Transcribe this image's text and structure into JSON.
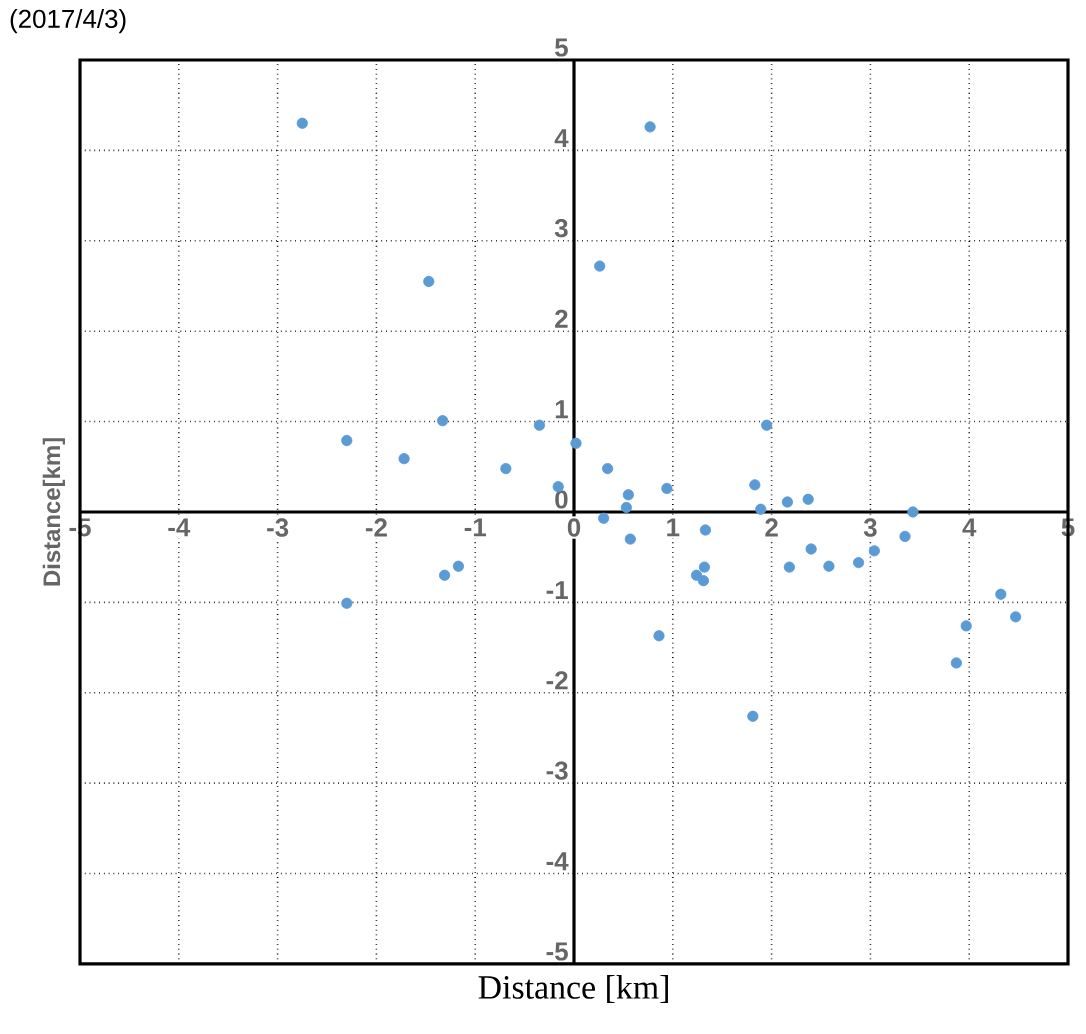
{
  "chart_data": {
    "type": "scatter",
    "title": "(2017/4/3)",
    "xlabel": "Distance [km]",
    "ylabel": "Distance[km]",
    "x": [
      -2.75,
      0.77,
      0.26,
      -1.47,
      -2.3,
      -1.72,
      -1.33,
      -0.35,
      -0.69,
      -0.16,
      0.02,
      0.34,
      0.55,
      0.94,
      1.95,
      1.83,
      2.16,
      2.37,
      3.43,
      0.3,
      0.53,
      0.57,
      1.33,
      1.32,
      1.24,
      1.31,
      0.86,
      1.89,
      2.18,
      2.4,
      2.58,
      2.88,
      3.04,
      3.35,
      1.81,
      4.32,
      4.47,
      3.97,
      3.87,
      -2.3,
      -1.31,
      -1.17
    ],
    "values": [
      4.3,
      4.26,
      2.72,
      2.55,
      0.79,
      0.59,
      1.01,
      0.96,
      0.48,
      0.28,
      0.76,
      0.48,
      0.19,
      0.26,
      0.96,
      0.3,
      0.11,
      0.14,
      0.0,
      -0.07,
      0.05,
      -0.3,
      -0.2,
      -0.61,
      -0.7,
      -0.76,
      -1.37,
      0.03,
      -0.61,
      -0.41,
      -0.6,
      -0.56,
      -0.43,
      -0.27,
      -2.26,
      -0.91,
      -1.16,
      -1.26,
      -1.67,
      -1.01,
      -0.7,
      -0.6
    ],
    "color": "#5b9bd5",
    "marker": "circle",
    "grid": true,
    "xlim": [
      -5,
      5
    ],
    "ylim": [
      -5,
      5
    ],
    "xticks": [
      -5,
      -4,
      -3,
      -2,
      -1,
      0,
      1,
      2,
      3,
      4,
      5
    ],
    "yticks": [
      -5,
      -4,
      -3,
      -2,
      -1,
      0,
      1,
      2,
      3,
      4,
      5
    ]
  }
}
